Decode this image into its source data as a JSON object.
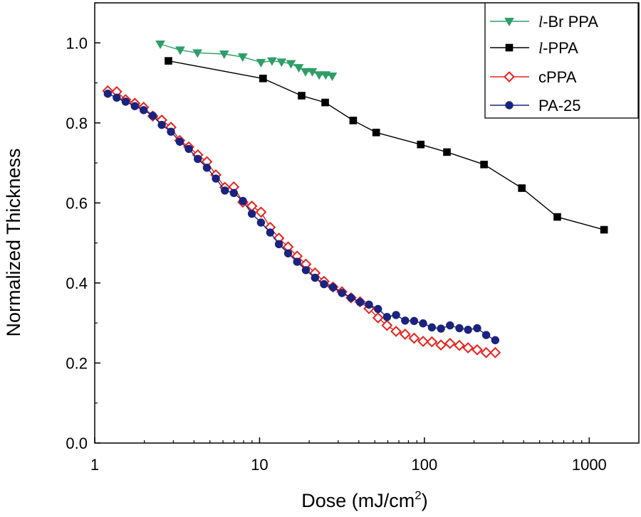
{
  "chart_data": {
    "type": "scatter",
    "xlabel": "Dose (mJ/cm",
    "xlabel_sup": "2",
    "xlabel_close": ")",
    "ylabel": "Normalized Thickness",
    "xscale": "log",
    "xlim": [
      1,
      2000
    ],
    "ylim": [
      0,
      1.1
    ],
    "x_ticks": [
      1,
      10,
      100,
      1000
    ],
    "x_tick_labels": [
      "1",
      "10",
      "100",
      "1000"
    ],
    "y_ticks": [
      0.0,
      0.2,
      0.4,
      0.6,
      0.8,
      1.0
    ],
    "y_tick_labels": [
      "0.0",
      "0.2",
      "0.4",
      "0.6",
      "0.8",
      "1.0"
    ],
    "grid": false,
    "legend_position": "top-right",
    "series": [
      {
        "name": "l-Br PPA",
        "name_prefix": "l",
        "name_rest": "-Br PPA",
        "color": "#2e9e68",
        "marker": "triangle-down",
        "marker_fill": "filled",
        "x": [
          2.5,
          3.3,
          4.2,
          6.1,
          7.9,
          10.2,
          11.9,
          13.6,
          15.5,
          17.3,
          19.0,
          20.9,
          23.0,
          25.2,
          27.6
        ],
        "y": [
          0.997,
          0.982,
          0.975,
          0.972,
          0.965,
          0.951,
          0.955,
          0.952,
          0.948,
          0.938,
          0.928,
          0.928,
          0.92,
          0.92,
          0.917
        ]
      },
      {
        "name": "l-PPA",
        "name_prefix": "l",
        "name_rest": "-PPA",
        "color": "#000000",
        "marker": "square",
        "marker_fill": "filled",
        "x": [
          2.8,
          10.5,
          18.0,
          25.0,
          37.0,
          51.0,
          95.0,
          137.0,
          230.0,
          390.0,
          640.0,
          1230.0
        ],
        "y": [
          0.955,
          0.911,
          0.868,
          0.851,
          0.806,
          0.776,
          0.746,
          0.727,
          0.696,
          0.637,
          0.565,
          0.533
        ]
      },
      {
        "name": "cPPA",
        "color": "#e8221c",
        "marker": "diamond",
        "marker_fill": "open",
        "x": [
          1.2,
          1.36,
          1.54,
          1.75,
          1.98,
          2.25,
          2.55,
          2.9,
          3.28,
          3.72,
          4.22,
          4.79,
          5.43,
          6.16,
          6.98,
          7.92,
          8.98,
          10.2,
          11.6,
          13.1,
          14.9,
          16.9,
          19.1,
          21.7,
          24.6,
          27.9,
          31.6,
          35.9,
          40.7,
          46.1,
          52.3,
          59.3,
          67.3,
          76.4,
          86.6,
          98.2,
          111.0,
          126.0,
          143.0,
          163.0,
          184.0,
          209.0,
          237.0,
          269.0
        ],
        "y": [
          0.88,
          0.878,
          0.858,
          0.849,
          0.839,
          0.817,
          0.807,
          0.789,
          0.756,
          0.74,
          0.72,
          0.703,
          0.67,
          0.639,
          0.64,
          0.602,
          0.592,
          0.577,
          0.539,
          0.512,
          0.49,
          0.467,
          0.447,
          0.425,
          0.404,
          0.39,
          0.378,
          0.363,
          0.353,
          0.336,
          0.313,
          0.294,
          0.279,
          0.272,
          0.262,
          0.254,
          0.253,
          0.245,
          0.249,
          0.244,
          0.238,
          0.233,
          0.226,
          0.226
        ],
        "line": true
      },
      {
        "name": "PA-25",
        "color": "#1a237e",
        "marker": "circle",
        "marker_fill": "filled",
        "x": [
          1.2,
          1.36,
          1.54,
          1.75,
          1.98,
          2.25,
          2.55,
          2.9,
          3.28,
          3.72,
          4.22,
          4.79,
          5.43,
          6.16,
          6.98,
          7.92,
          8.98,
          10.2,
          11.6,
          13.1,
          14.9,
          16.9,
          19.1,
          21.7,
          24.6,
          27.9,
          31.6,
          35.9,
          40.7,
          46.1,
          52.3,
          59.3,
          67.3,
          76.4,
          86.6,
          98.2,
          111.0,
          126.0,
          143.0,
          163.0,
          184.0,
          209.0,
          237.0,
          269.0
        ],
        "y": [
          0.873,
          0.863,
          0.853,
          0.842,
          0.832,
          0.818,
          0.795,
          0.778,
          0.753,
          0.735,
          0.71,
          0.688,
          0.661,
          0.631,
          0.625,
          0.605,
          0.573,
          0.551,
          0.526,
          0.497,
          0.474,
          0.453,
          0.432,
          0.413,
          0.397,
          0.389,
          0.375,
          0.363,
          0.352,
          0.346,
          0.335,
          0.315,
          0.32,
          0.306,
          0.305,
          0.299,
          0.289,
          0.286,
          0.294,
          0.287,
          0.283,
          0.287,
          0.27,
          0.257
        ],
        "line": true
      }
    ]
  }
}
